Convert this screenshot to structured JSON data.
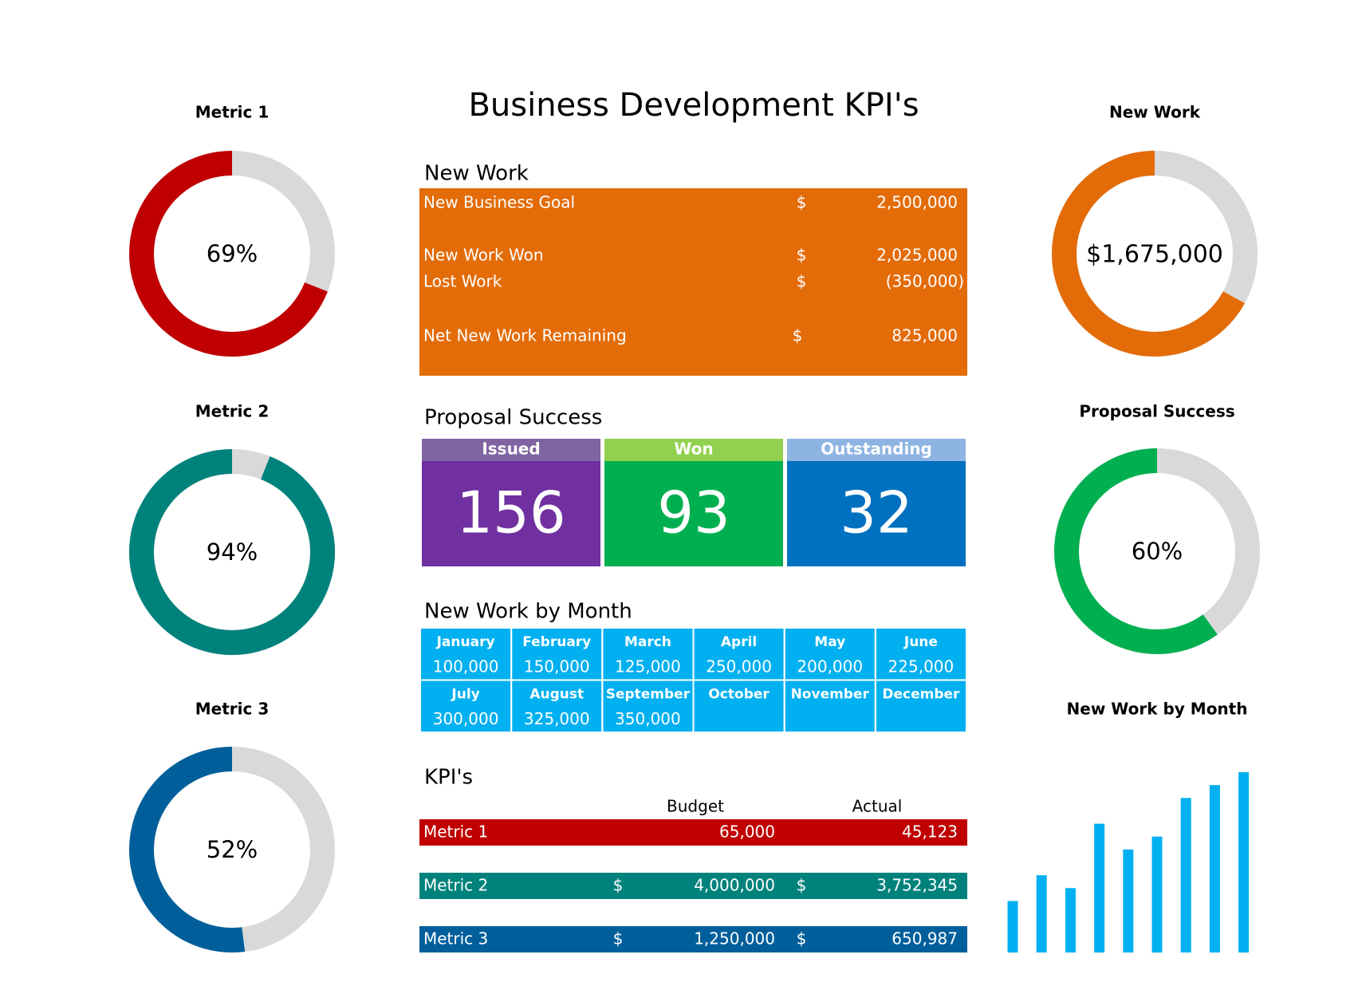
{
  "title": "Business Development KPI's",
  "chart_data": [
    {
      "type": "donut",
      "title": "Metric 1",
      "values": [
        69
      ],
      "value_labels": [
        "69%"
      ],
      "range": [
        0,
        100
      ],
      "color": "#c00000"
    },
    {
      "type": "donut",
      "title": "Metric 2",
      "values": [
        94
      ],
      "value_labels": [
        "94%"
      ],
      "range": [
        0,
        100
      ],
      "color": "#00827c"
    },
    {
      "type": "donut",
      "title": "Metric 3",
      "values": [
        52
      ],
      "value_labels": [
        "52%"
      ],
      "range": [
        0,
        100
      ],
      "color": "#005f9b"
    },
    {
      "type": "donut",
      "title": "New Work",
      "values": [
        1675000
      ],
      "value_labels": [
        "$1,675,000"
      ],
      "range": [
        0,
        2500000
      ],
      "color": "#e36c09"
    },
    {
      "type": "donut",
      "title": "Proposal Success",
      "values": [
        60
      ],
      "value_labels": [
        "60%"
      ],
      "range": [
        0,
        100
      ],
      "color": "#00b050"
    },
    {
      "type": "bar",
      "title": "New Work by Month",
      "values": [
        100000,
        150000,
        125000,
        250000,
        200000,
        225000,
        300000,
        325000,
        350000
      ],
      "ylim": [
        0,
        350000
      ],
      "color": "#00b0f0"
    }
  ],
  "new_work": {
    "heading": "New Work",
    "color": "#e36c09",
    "rows": [
      {
        "label": "New Business Goal",
        "symbol": "$",
        "amount": "2,500,000"
      },
      {
        "label": "New Work Won",
        "symbol": "$",
        "amount": "2,025,000"
      },
      {
        "label": "Lost Work",
        "symbol": "$",
        "amount": "(350,000)"
      },
      {
        "label": "Net New Work Remaining",
        "symbol": "$",
        "amount": "825,000"
      }
    ]
  },
  "proposal_success": {
    "heading": "Proposal Success",
    "tiles": [
      {
        "label": "Issued",
        "value": 156,
        "header_color": "#8064a2",
        "color": "#7030a0"
      },
      {
        "label": "Won",
        "value": 93,
        "header_color": "#92d050",
        "color": "#00b050"
      },
      {
        "label": "Outstanding",
        "value": 32,
        "header_color": "#8db4e2",
        "color": "#0070c0"
      }
    ]
  },
  "new_work_by_month": {
    "heading": "New Work by Month",
    "color": "#00b0f0",
    "months": [
      {
        "month": "January",
        "amount": "100,000"
      },
      {
        "month": "February",
        "amount": "150,000"
      },
      {
        "month": "March",
        "amount": "125,000"
      },
      {
        "month": "April",
        "amount": "250,000"
      },
      {
        "month": "May",
        "amount": "200,000"
      },
      {
        "month": "June",
        "amount": "225,000"
      },
      {
        "month": "July",
        "amount": "300,000"
      },
      {
        "month": "August",
        "amount": "325,000"
      },
      {
        "month": "September",
        "amount": "350,000"
      },
      {
        "month": "October"
      },
      {
        "month": "November"
      },
      {
        "month": "December"
      }
    ]
  },
  "kpis": {
    "heading": "KPI's",
    "columns": [
      "Budget",
      "Actual"
    ],
    "rows": [
      {
        "label": "Metric 1",
        "color": "#c00000",
        "budget": "65,000",
        "actual": "45,123"
      },
      {
        "label": "Metric 2",
        "color": "#00827c",
        "budget_symbol": "$",
        "budget": "4,000,000",
        "actual_symbol": "$",
        "actual": "3,752,345"
      },
      {
        "label": "Metric 3",
        "color": "#005f9b",
        "budget_symbol": "$",
        "budget": "1,250,000",
        "actual_symbol": "$",
        "actual": "650,987"
      }
    ]
  }
}
